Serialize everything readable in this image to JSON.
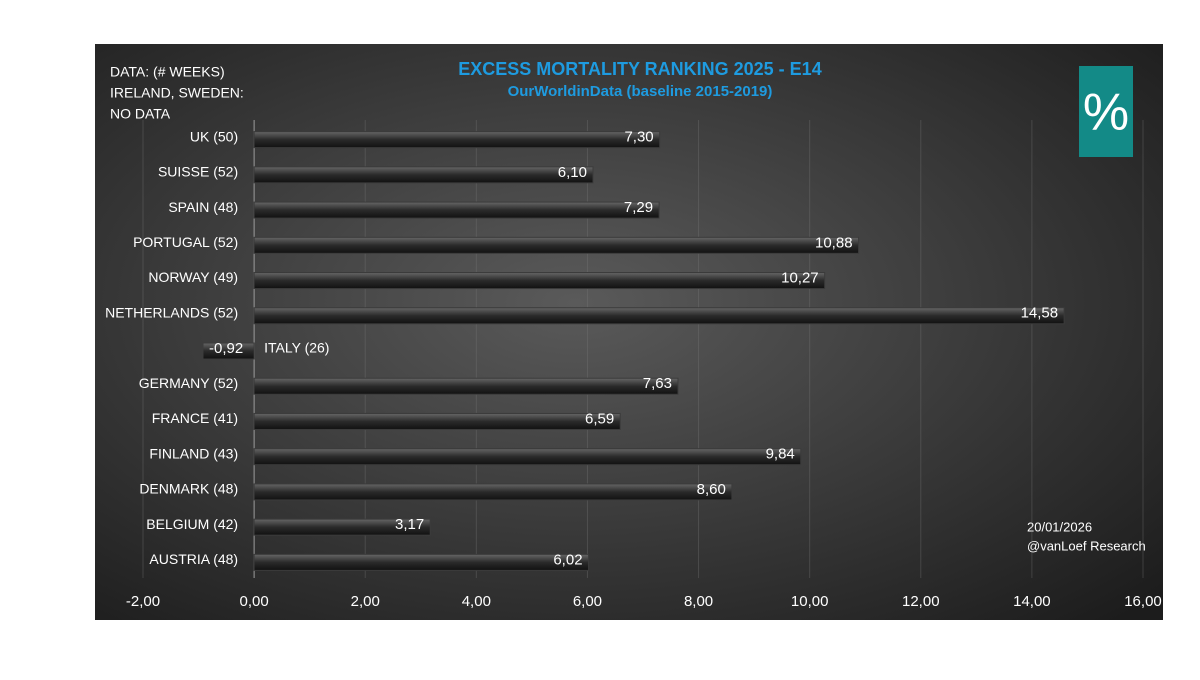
{
  "chart_data": {
    "type": "bar",
    "orientation": "horizontal",
    "title": "EXCESS MORTALITY RANKING 2025 - E14",
    "subtitle": "OurWorldinData (baseline 2015-2019)",
    "notes": [
      "DATA: (# WEEKS)",
      "IRELAND, SWEDEN:",
      "NO DATA"
    ],
    "footer": [
      "20/01/2026",
      "@vanLoef Research"
    ],
    "badge": "%",
    "categories": [
      "UK (50)",
      "SUISSE (52)",
      "SPAIN (48)",
      "PORTUGAL (52)",
      "NORWAY (49)",
      "NETHERLANDS (52)",
      "ITALY (26)",
      "GERMANY (52)",
      "FRANCE (41)",
      "FINLAND (43)",
      "DENMARK (48)",
      "BELGIUM (42)",
      "AUSTRIA (48)"
    ],
    "values": [
      7.3,
      6.1,
      7.29,
      10.88,
      10.27,
      14.58,
      -0.92,
      7.63,
      6.59,
      9.84,
      8.6,
      3.17,
      6.02
    ],
    "value_labels": [
      "7,30",
      "6,10",
      "7,29",
      "10,88",
      "10,27",
      "14,58",
      "-0,92",
      "7,63",
      "6,59",
      "9,84",
      "8,60",
      "3,17",
      "6,02"
    ],
    "color": "#3b3b3b",
    "title_color": "#1e9be0",
    "badge_color": "#138a87",
    "xlim": [
      -2,
      16
    ],
    "xticks": [
      {
        "value": -2,
        "label": "-2,00"
      },
      {
        "value": 0,
        "label": "0,00"
      },
      {
        "value": 2,
        "label": "2,00"
      },
      {
        "value": 4,
        "label": "4,00"
      },
      {
        "value": 6,
        "label": "6,00"
      },
      {
        "value": 8,
        "label": "8,00"
      },
      {
        "value": 10,
        "label": "10,00"
      },
      {
        "value": 12,
        "label": "12,00"
      },
      {
        "value": 14,
        "label": "14,00"
      },
      {
        "value": 16,
        "label": "16,00"
      }
    ],
    "grid": true
  }
}
